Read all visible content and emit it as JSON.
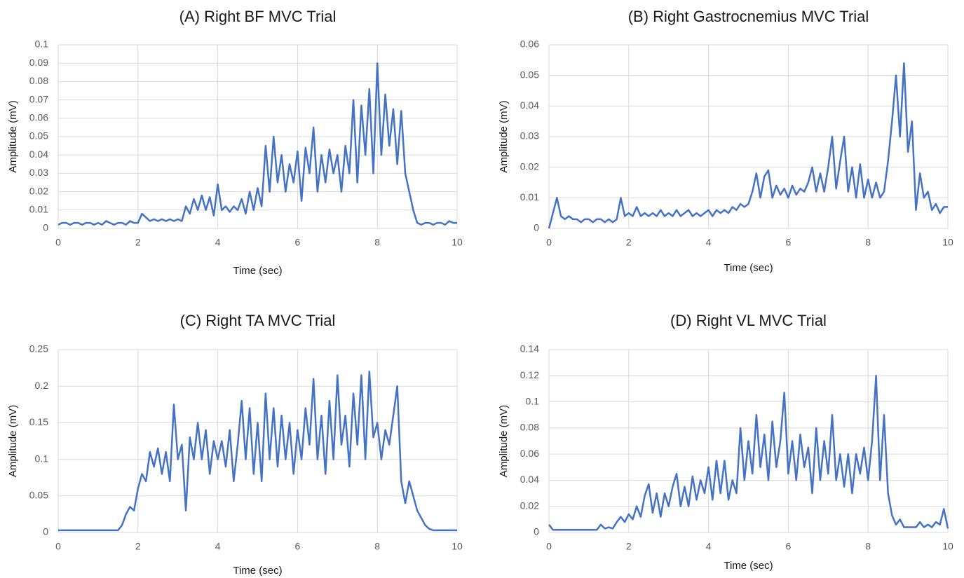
{
  "chart_data": [
    {
      "type": "line",
      "title": "(A) Right BF MVC Trial",
      "xlabel": "Time (sec)",
      "ylabel": "Amplitude (mV)",
      "color": "#4472c4",
      "grid": true,
      "xlim": [
        0,
        10
      ],
      "xticks": [
        0,
        2,
        4,
        6,
        8,
        10
      ],
      "ylim": [
        0,
        0.1
      ],
      "yticks": [
        0,
        0.01,
        0.02,
        0.03,
        0.04,
        0.05,
        0.06,
        0.07,
        0.08,
        0.09,
        0.1
      ],
      "x": [
        0,
        0.1,
        0.2,
        0.3,
        0.4,
        0.5,
        0.6,
        0.7,
        0.8,
        0.9,
        1,
        1.1,
        1.2,
        1.3,
        1.4,
        1.5,
        1.6,
        1.7,
        1.8,
        1.9,
        2,
        2.1,
        2.2,
        2.3,
        2.4,
        2.5,
        2.6,
        2.7,
        2.8,
        2.9,
        3,
        3.1,
        3.2,
        3.3,
        3.4,
        3.5,
        3.6,
        3.7,
        3.8,
        3.9,
        4,
        4.1,
        4.2,
        4.3,
        4.4,
        4.5,
        4.6,
        4.7,
        4.8,
        4.9,
        5,
        5.1,
        5.2,
        5.3,
        5.4,
        5.5,
        5.6,
        5.7,
        5.8,
        5.9,
        6,
        6.1,
        6.2,
        6.3,
        6.4,
        6.5,
        6.6,
        6.7,
        6.8,
        6.9,
        7,
        7.1,
        7.2,
        7.3,
        7.4,
        7.5,
        7.6,
        7.7,
        7.8,
        7.9,
        8,
        8.1,
        8.2,
        8.3,
        8.4,
        8.5,
        8.6,
        8.7,
        8.8,
        8.9,
        9,
        9.1,
        9.2,
        9.3,
        9.4,
        9.5,
        9.6,
        9.7,
        9.8,
        9.9,
        10
      ],
      "values": [
        0.002,
        0.003,
        0.003,
        0.002,
        0.003,
        0.003,
        0.002,
        0.003,
        0.003,
        0.002,
        0.003,
        0.002,
        0.004,
        0.003,
        0.002,
        0.003,
        0.003,
        0.002,
        0.004,
        0.003,
        0.003,
        0.008,
        0.006,
        0.004,
        0.005,
        0.004,
        0.005,
        0.004,
        0.005,
        0.004,
        0.005,
        0.004,
        0.012,
        0.008,
        0.016,
        0.01,
        0.018,
        0.01,
        0.017,
        0.007,
        0.024,
        0.01,
        0.012,
        0.009,
        0.012,
        0.01,
        0.016,
        0.008,
        0.02,
        0.01,
        0.022,
        0.012,
        0.045,
        0.02,
        0.05,
        0.025,
        0.04,
        0.02,
        0.035,
        0.025,
        0.042,
        0.015,
        0.044,
        0.03,
        0.055,
        0.02,
        0.04,
        0.025,
        0.043,
        0.03,
        0.04,
        0.02,
        0.045,
        0.03,
        0.07,
        0.025,
        0.067,
        0.04,
        0.076,
        0.03,
        0.09,
        0.04,
        0.073,
        0.045,
        0.065,
        0.035,
        0.064,
        0.03,
        0.02,
        0.01,
        0.003,
        0.002,
        0.003,
        0.003,
        0.002,
        0.003,
        0.003,
        0.002,
        0.004,
        0.003,
        0.003
      ]
    },
    {
      "type": "line",
      "title": "(B) Right Gastrocnemius MVC Trial",
      "xlabel": "Time (sec)",
      "ylabel": "Amplitude (mV)",
      "color": "#4472c4",
      "grid": true,
      "xlim": [
        0,
        10
      ],
      "xticks": [
        0,
        2,
        4,
        6,
        8,
        10
      ],
      "ylim": [
        0,
        0.06
      ],
      "yticks": [
        0,
        0.01,
        0.02,
        0.03,
        0.04,
        0.05,
        0.06
      ],
      "x": [
        0,
        0.1,
        0.2,
        0.3,
        0.4,
        0.5,
        0.6,
        0.7,
        0.8,
        0.9,
        1,
        1.1,
        1.2,
        1.3,
        1.4,
        1.5,
        1.6,
        1.7,
        1.8,
        1.9,
        2,
        2.1,
        2.2,
        2.3,
        2.4,
        2.5,
        2.6,
        2.7,
        2.8,
        2.9,
        3,
        3.1,
        3.2,
        3.3,
        3.4,
        3.5,
        3.6,
        3.7,
        3.8,
        3.9,
        4,
        4.1,
        4.2,
        4.3,
        4.4,
        4.5,
        4.6,
        4.7,
        4.8,
        4.9,
        5,
        5.1,
        5.2,
        5.3,
        5.4,
        5.5,
        5.6,
        5.7,
        5.8,
        5.9,
        6,
        6.1,
        6.2,
        6.3,
        6.4,
        6.5,
        6.6,
        6.7,
        6.8,
        6.9,
        7,
        7.1,
        7.2,
        7.3,
        7.4,
        7.5,
        7.6,
        7.7,
        7.8,
        7.9,
        8,
        8.1,
        8.2,
        8.3,
        8.4,
        8.5,
        8.6,
        8.7,
        8.8,
        8.9,
        9,
        9.1,
        9.2,
        9.3,
        9.4,
        9.5,
        9.6,
        9.7,
        9.8,
        9.9,
        10
      ],
      "values": [
        0,
        0.005,
        0.01,
        0.004,
        0.003,
        0.004,
        0.003,
        0.003,
        0.002,
        0.003,
        0.003,
        0.002,
        0.003,
        0.003,
        0.002,
        0.003,
        0.002,
        0.003,
        0.01,
        0.004,
        0.005,
        0.004,
        0.007,
        0.004,
        0.005,
        0.004,
        0.005,
        0.004,
        0.006,
        0.004,
        0.005,
        0.004,
        0.006,
        0.004,
        0.005,
        0.006,
        0.004,
        0.005,
        0.004,
        0.005,
        0.006,
        0.004,
        0.006,
        0.005,
        0.006,
        0.005,
        0.007,
        0.006,
        0.008,
        0.007,
        0.008,
        0.012,
        0.018,
        0.01,
        0.017,
        0.019,
        0.01,
        0.014,
        0.011,
        0.013,
        0.01,
        0.014,
        0.011,
        0.013,
        0.012,
        0.015,
        0.02,
        0.012,
        0.018,
        0.012,
        0.02,
        0.03,
        0.013,
        0.022,
        0.03,
        0.012,
        0.02,
        0.01,
        0.021,
        0.01,
        0.016,
        0.01,
        0.015,
        0.01,
        0.012,
        0.022,
        0.035,
        0.05,
        0.03,
        0.054,
        0.025,
        0.035,
        0.006,
        0.018,
        0.01,
        0.012,
        0.006,
        0.008,
        0.005,
        0.007,
        0.007
      ]
    },
    {
      "type": "line",
      "title": "(C) Right TA MVC Trial",
      "xlabel": "Time (sec)",
      "ylabel": "Amplitude (mV)",
      "color": "#4472c4",
      "grid": true,
      "xlim": [
        0,
        10
      ],
      "xticks": [
        0,
        2,
        4,
        6,
        8,
        10
      ],
      "ylim": [
        0,
        0.25
      ],
      "yticks": [
        0,
        0.05,
        0.1,
        0.15,
        0.2,
        0.25
      ],
      "x": [
        0,
        0.1,
        0.2,
        0.3,
        0.4,
        0.5,
        0.6,
        0.7,
        0.8,
        0.9,
        1,
        1.1,
        1.2,
        1.3,
        1.4,
        1.5,
        1.6,
        1.7,
        1.8,
        1.9,
        2,
        2.1,
        2.2,
        2.3,
        2.4,
        2.5,
        2.6,
        2.7,
        2.8,
        2.9,
        3,
        3.1,
        3.2,
        3.3,
        3.4,
        3.5,
        3.6,
        3.7,
        3.8,
        3.9,
        4,
        4.1,
        4.2,
        4.3,
        4.4,
        4.5,
        4.6,
        4.7,
        4.8,
        4.9,
        5,
        5.1,
        5.2,
        5.3,
        5.4,
        5.5,
        5.6,
        5.7,
        5.8,
        5.9,
        6,
        6.1,
        6.2,
        6.3,
        6.4,
        6.5,
        6.6,
        6.7,
        6.8,
        6.9,
        7,
        7.1,
        7.2,
        7.3,
        7.4,
        7.5,
        7.6,
        7.7,
        7.8,
        7.9,
        8,
        8.1,
        8.2,
        8.3,
        8.4,
        8.5,
        8.6,
        8.7,
        8.8,
        8.9,
        9,
        9.1,
        9.2,
        9.3,
        9.4,
        9.5,
        9.6,
        9.7,
        9.8,
        9.9,
        10
      ],
      "values": [
        0.003,
        0.003,
        0.003,
        0.003,
        0.003,
        0.003,
        0.003,
        0.003,
        0.003,
        0.003,
        0.003,
        0.003,
        0.003,
        0.003,
        0.003,
        0.003,
        0.01,
        0.025,
        0.035,
        0.03,
        0.06,
        0.08,
        0.07,
        0.11,
        0.09,
        0.115,
        0.08,
        0.11,
        0.07,
        0.175,
        0.1,
        0.12,
        0.03,
        0.13,
        0.1,
        0.15,
        0.1,
        0.14,
        0.08,
        0.125,
        0.1,
        0.125,
        0.09,
        0.14,
        0.07,
        0.12,
        0.18,
        0.1,
        0.17,
        0.08,
        0.15,
        0.07,
        0.19,
        0.1,
        0.17,
        0.09,
        0.16,
        0.1,
        0.15,
        0.08,
        0.14,
        0.1,
        0.17,
        0.12,
        0.21,
        0.1,
        0.16,
        0.08,
        0.18,
        0.1,
        0.215,
        0.12,
        0.16,
        0.09,
        0.19,
        0.12,
        0.215,
        0.1,
        0.22,
        0.13,
        0.15,
        0.1,
        0.14,
        0.12,
        0.16,
        0.2,
        0.07,
        0.04,
        0.07,
        0.05,
        0.03,
        0.02,
        0.01,
        0.005,
        0.003,
        0.003,
        0.003,
        0.003,
        0.003,
        0.003,
        0.003
      ]
    },
    {
      "type": "line",
      "title": "(D) Right VL MVC Trial",
      "xlabel": "Time (sec)",
      "ylabel": "Amplitude (mV)",
      "color": "#4472c4",
      "grid": true,
      "xlim": [
        0,
        10
      ],
      "xticks": [
        0,
        2,
        4,
        6,
        8,
        10
      ],
      "ylim": [
        0,
        0.14
      ],
      "yticks": [
        0,
        0.02,
        0.04,
        0.06,
        0.08,
        0.1,
        0.12,
        0.14
      ],
      "x": [
        0,
        0.1,
        0.2,
        0.3,
        0.4,
        0.5,
        0.6,
        0.7,
        0.8,
        0.9,
        1,
        1.1,
        1.2,
        1.3,
        1.4,
        1.5,
        1.6,
        1.7,
        1.8,
        1.9,
        2,
        2.1,
        2.2,
        2.3,
        2.4,
        2.5,
        2.6,
        2.7,
        2.8,
        2.9,
        3,
        3.1,
        3.2,
        3.3,
        3.4,
        3.5,
        3.6,
        3.7,
        3.8,
        3.9,
        4,
        4.1,
        4.2,
        4.3,
        4.4,
        4.5,
        4.6,
        4.7,
        4.8,
        4.9,
        5,
        5.1,
        5.2,
        5.3,
        5.4,
        5.5,
        5.6,
        5.7,
        5.8,
        5.9,
        6,
        6.1,
        6.2,
        6.3,
        6.4,
        6.5,
        6.6,
        6.7,
        6.8,
        6.9,
        7,
        7.1,
        7.2,
        7.3,
        7.4,
        7.5,
        7.6,
        7.7,
        7.8,
        7.9,
        8,
        8.1,
        8.2,
        8.3,
        8.4,
        8.5,
        8.6,
        8.7,
        8.8,
        8.9,
        9,
        9.1,
        9.2,
        9.3,
        9.4,
        9.5,
        9.6,
        9.7,
        9.8,
        9.9,
        10
      ],
      "values": [
        0.006,
        0.002,
        0.002,
        0.002,
        0.002,
        0.002,
        0.002,
        0.002,
        0.002,
        0.002,
        0.002,
        0.002,
        0.002,
        0.006,
        0.003,
        0.004,
        0.003,
        0.008,
        0.012,
        0.008,
        0.014,
        0.01,
        0.02,
        0.012,
        0.028,
        0.037,
        0.015,
        0.03,
        0.012,
        0.03,
        0.02,
        0.035,
        0.045,
        0.02,
        0.035,
        0.02,
        0.043,
        0.025,
        0.04,
        0.03,
        0.05,
        0.025,
        0.055,
        0.03,
        0.055,
        0.025,
        0.04,
        0.03,
        0.08,
        0.04,
        0.07,
        0.045,
        0.09,
        0.05,
        0.075,
        0.04,
        0.085,
        0.05,
        0.07,
        0.107,
        0.045,
        0.07,
        0.04,
        0.075,
        0.05,
        0.065,
        0.03,
        0.08,
        0.04,
        0.07,
        0.045,
        0.09,
        0.04,
        0.06,
        0.035,
        0.06,
        0.03,
        0.06,
        0.045,
        0.065,
        0.04,
        0.07,
        0.12,
        0.04,
        0.09,
        0.03,
        0.013,
        0.006,
        0.01,
        0.004,
        0.004,
        0.004,
        0.004,
        0.008,
        0.004,
        0.006,
        0.004,
        0.008,
        0.006,
        0.018,
        0.003
      ]
    }
  ]
}
